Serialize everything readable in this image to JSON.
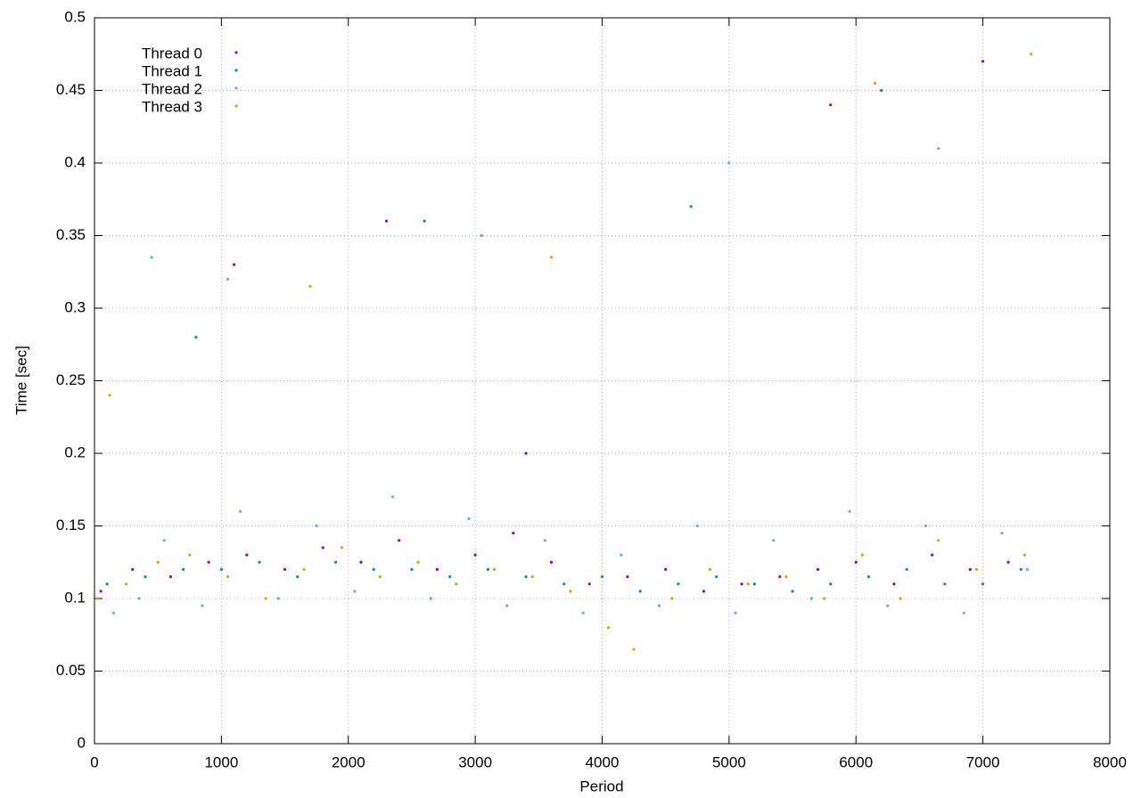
{
  "chart_data": {
    "type": "scatter",
    "xlabel": "Period",
    "ylabel": "Time [sec]",
    "xlim": [
      0,
      8000
    ],
    "xticks": [
      0,
      1000,
      2000,
      3000,
      4000,
      5000,
      6000,
      7000,
      8000
    ],
    "ylim": [
      0,
      0.5
    ],
    "yticks": [
      0,
      0.05,
      0.1,
      0.15,
      0.2,
      0.25,
      0.3,
      0.35,
      0.4,
      0.45,
      0.5
    ],
    "grid": true,
    "legend": "top-left",
    "series": [
      {
        "name": "Thread 0",
        "color": "#9400d3",
        "x": [
          50,
          300,
          600,
          900,
          1200,
          1500,
          1800,
          2100,
          2400,
          2700,
          3000,
          3300,
          3600,
          3900,
          4200,
          4500,
          4800,
          5100,
          5400,
          5700,
          6000,
          6300,
          6600,
          6900,
          7200,
          1100,
          2300,
          3400,
          5800,
          7000
        ],
        "values": [
          0.105,
          0.12,
          0.115,
          0.125,
          0.13,
          0.12,
          0.135,
          0.125,
          0.14,
          0.12,
          0.13,
          0.145,
          0.125,
          0.11,
          0.115,
          0.12,
          0.105,
          0.11,
          0.115,
          0.12,
          0.125,
          0.11,
          0.13,
          0.12,
          0.125,
          0.33,
          0.36,
          0.2,
          0.44,
          0.47
        ]
      },
      {
        "name": "Thread 1",
        "color": "#009e73",
        "x": [
          100,
          400,
          700,
          1000,
          1300,
          1600,
          1900,
          2200,
          2500,
          2800,
          3100,
          3400,
          3700,
          4000,
          4300,
          4600,
          4900,
          5200,
          5500,
          5800,
          6100,
          6400,
          6700,
          7000,
          7300,
          800,
          2600,
          4700,
          6200
        ],
        "values": [
          0.11,
          0.115,
          0.12,
          0.12,
          0.125,
          0.115,
          0.125,
          0.12,
          0.12,
          0.115,
          0.12,
          0.115,
          0.11,
          0.115,
          0.105,
          0.11,
          0.115,
          0.11,
          0.105,
          0.11,
          0.115,
          0.12,
          0.11,
          0.11,
          0.12,
          0.28,
          0.36,
          0.37,
          0.45
        ]
      },
      {
        "name": "Thread 2",
        "color": "#56b4e9",
        "x": [
          150,
          350,
          550,
          850,
          1150,
          1450,
          1750,
          2050,
          2350,
          2650,
          2950,
          3250,
          3550,
          3850,
          4150,
          4450,
          4750,
          5050,
          5350,
          5650,
          5950,
          6250,
          6550,
          6850,
          7150,
          7350,
          450,
          1050,
          3050,
          5000,
          6650
        ],
        "values": [
          0.09,
          0.1,
          0.14,
          0.095,
          0.16,
          0.1,
          0.15,
          0.105,
          0.17,
          0.1,
          0.155,
          0.095,
          0.14,
          0.09,
          0.13,
          0.095,
          0.15,
          0.09,
          0.14,
          0.1,
          0.16,
          0.095,
          0.15,
          0.09,
          0.145,
          0.12,
          0.335,
          0.32,
          0.35,
          0.4,
          0.41
        ]
      },
      {
        "name": "Thread 3",
        "color": "#e69f00",
        "x": [
          20,
          250,
          500,
          750,
          1050,
          1350,
          1650,
          1950,
          2250,
          2550,
          2850,
          3150,
          3450,
          3750,
          4050,
          4250,
          4550,
          4850,
          5150,
          5450,
          5750,
          6050,
          6350,
          6650,
          6950,
          7330,
          120,
          1700,
          3600,
          6150,
          7380
        ],
        "values": [
          0.1,
          0.11,
          0.125,
          0.13,
          0.115,
          0.1,
          0.12,
          0.135,
          0.115,
          0.125,
          0.11,
          0.12,
          0.115,
          0.105,
          0.08,
          0.065,
          0.1,
          0.12,
          0.11,
          0.115,
          0.1,
          0.13,
          0.1,
          0.14,
          0.12,
          0.13,
          0.24,
          0.315,
          0.335,
          0.455,
          0.475
        ]
      }
    ]
  }
}
